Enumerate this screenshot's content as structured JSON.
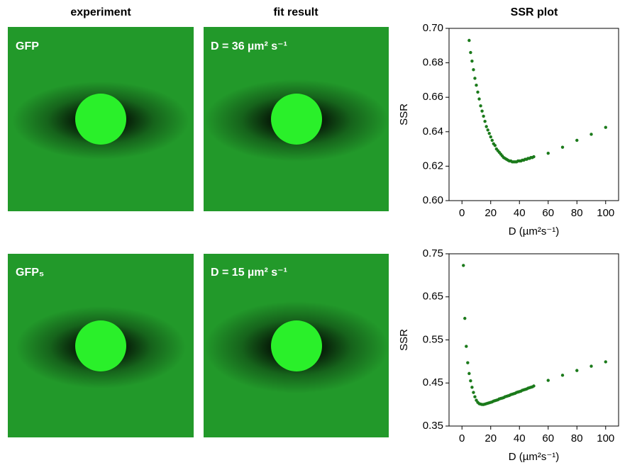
{
  "headers": [
    "experiment",
    "fit result",
    "SSR plot"
  ],
  "panels": [
    {
      "experiment_label": "GFP",
      "fit_label": "D = 36 µm² s⁻¹"
    },
    {
      "experiment_label": "GFP₅",
      "fit_label": "D = 15 µm² s⁻¹"
    }
  ],
  "chart_data": [
    {
      "type": "scatter",
      "color": "#1b7a1b",
      "ylabel": "SSR",
      "xlabel": "D (µm²s⁻¹)",
      "xlim": [
        -9,
        109
      ],
      "ylim": [
        0.6,
        0.7
      ],
      "xticks": [
        0,
        20,
        40,
        60,
        80,
        100
      ],
      "yticks": [
        {
          "value": 0.6,
          "label": "0.60"
        },
        0.62,
        0.64,
        0.66,
        0.68,
        {
          "value": 0.7,
          "label": "0.70"
        }
      ],
      "x": [
        5,
        6,
        7,
        8,
        9,
        10,
        11,
        12,
        13,
        14,
        15,
        16,
        17,
        18,
        19,
        20,
        21,
        22,
        23,
        24,
        25,
        26,
        27,
        28,
        29,
        30,
        31,
        32,
        33,
        34,
        35,
        36,
        37,
        38,
        39,
        40,
        41,
        42,
        43,
        44,
        45,
        46,
        47,
        48,
        49,
        50,
        60,
        70,
        80,
        90,
        100
      ],
      "values": [
        0.693,
        0.686,
        0.681,
        0.676,
        0.671,
        0.667,
        0.663,
        0.659,
        0.655,
        0.652,
        0.649,
        0.646,
        0.643,
        0.641,
        0.639,
        0.637,
        0.635,
        0.633,
        0.632,
        0.63,
        0.629,
        0.628,
        0.627,
        0.626,
        0.625,
        0.6245,
        0.624,
        0.6235,
        0.623,
        0.623,
        0.6225,
        0.6225,
        0.6225,
        0.6225,
        0.623,
        0.623,
        0.623,
        0.6235,
        0.6235,
        0.624,
        0.624,
        0.6245,
        0.6245,
        0.625,
        0.625,
        0.6255,
        0.6275,
        0.631,
        0.635,
        0.6385,
        0.6425
      ]
    },
    {
      "type": "scatter",
      "color": "#1b7a1b",
      "ylabel": "SSR",
      "xlabel": "D (µm²s⁻¹)",
      "xlim": [
        -9,
        109
      ],
      "ylim": [
        0.35,
        0.75
      ],
      "xticks": [
        0,
        20,
        40,
        60,
        80,
        100
      ],
      "yticks": [
        0.35,
        0.45,
        0.55,
        0.65,
        0.75
      ],
      "x": [
        1,
        2,
        3,
        4,
        5,
        6,
        7,
        8,
        9,
        10,
        11,
        12,
        13,
        14,
        15,
        16,
        17,
        18,
        19,
        20,
        21,
        22,
        23,
        24,
        25,
        26,
        27,
        28,
        29,
        30,
        31,
        32,
        33,
        34,
        35,
        36,
        37,
        38,
        39,
        40,
        41,
        42,
        43,
        44,
        45,
        46,
        47,
        48,
        49,
        50,
        60,
        70,
        80,
        90,
        100
      ],
      "values": [
        0.723,
        0.6,
        0.535,
        0.497,
        0.472,
        0.455,
        0.44,
        0.428,
        0.418,
        0.41,
        0.405,
        0.402,
        0.401,
        0.4,
        0.4,
        0.401,
        0.402,
        0.403,
        0.404,
        0.405,
        0.406,
        0.408,
        0.409,
        0.41,
        0.411,
        0.413,
        0.414,
        0.415,
        0.416,
        0.418,
        0.419,
        0.42,
        0.421,
        0.423,
        0.424,
        0.425,
        0.426,
        0.428,
        0.429,
        0.43,
        0.431,
        0.433,
        0.434,
        0.435,
        0.436,
        0.438,
        0.439,
        0.44,
        0.441,
        0.443,
        0.456,
        0.468,
        0.479,
        0.489,
        0.499
      ]
    }
  ]
}
